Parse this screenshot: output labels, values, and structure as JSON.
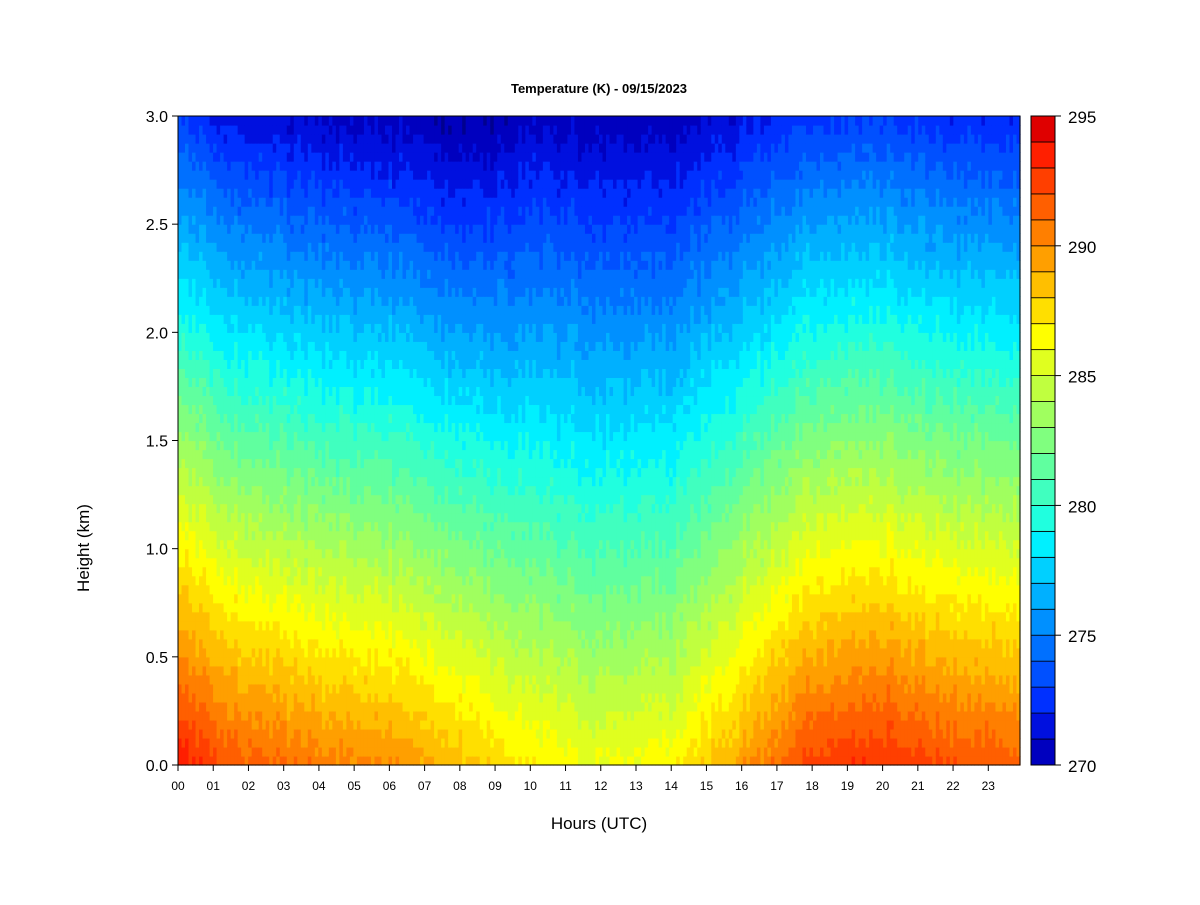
{
  "chart_data": {
    "type": "heatmap",
    "title": "Temperature (K) - 09/15/2023",
    "xlabel": "Hours (UTC)",
    "ylabel": "Height (km)",
    "x_ticks": [
      "00",
      "01",
      "02",
      "03",
      "04",
      "05",
      "06",
      "07",
      "08",
      "09",
      "10",
      "11",
      "12",
      "13",
      "14",
      "15",
      "16",
      "17",
      "18",
      "19",
      "20",
      "21",
      "22",
      "23"
    ],
    "xlim": [
      0,
      23.9
    ],
    "y_ticks": [
      "0.0",
      "0.5",
      "1.0",
      "1.5",
      "2.0",
      "2.5",
      "3.0"
    ],
    "ylim": [
      0,
      3.0
    ],
    "colorbar": {
      "min": 270,
      "max": 295,
      "step": 1,
      "tick_labels": [
        "270",
        "275",
        "280",
        "285",
        "290",
        "295"
      ],
      "colors": [
        "#00008f",
        "#0000bf",
        "#0010df",
        "#0030ff",
        "#0050ff",
        "#0070ff",
        "#0090ff",
        "#00b0ff",
        "#00d0ff",
        "#00f0ff",
        "#20ffdf",
        "#40ffbf",
        "#60ff9f",
        "#80ff7f",
        "#a0ff5f",
        "#c0ff3f",
        "#e0ff1f",
        "#ffff00",
        "#ffdf00",
        "#ffbf00",
        "#ff9f00",
        "#ff7f00",
        "#ff5f00",
        "#ff3f00",
        "#ff1f00",
        "#df0000",
        "#bf0000",
        "#8f0000"
      ]
    },
    "grid": false,
    "legend": "colorbar-right",
    "field_description": "Temperature is ~292-293 K at the surface at night and ~286-287 K at the surface around midday; it decreases with height to ~277-279 K near 2.0 km and ~271-273 K at 3.0 km.",
    "profile_hours": [
      0,
      2,
      4,
      6,
      8,
      10,
      12,
      14,
      16,
      18,
      20,
      22,
      23.9
    ],
    "surface_temperature_K": [
      293.5,
      291.5,
      290.5,
      290.0,
      288.5,
      287.0,
      286.0,
      286.5,
      289.5,
      292.5,
      293.0,
      292.0,
      291.5
    ],
    "lapse_rate_K_per_km": [
      6.9,
      6.7,
      6.6,
      6.5,
      6.3,
      5.5,
      5.2,
      5.4,
      6.0,
      6.6,
      6.7,
      6.6,
      6.5
    ]
  }
}
